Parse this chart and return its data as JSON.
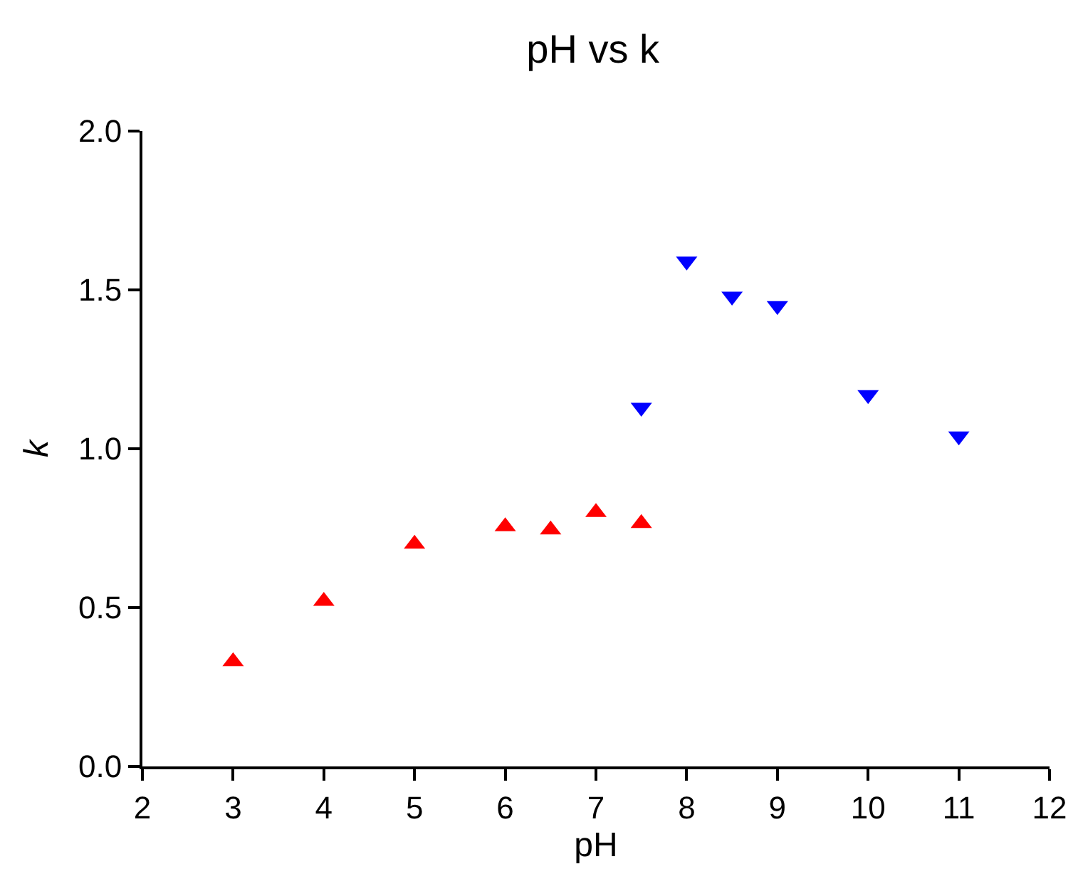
{
  "chart_data": {
    "type": "scatter",
    "title": "pH vs k",
    "xlabel": "pH",
    "ylabel": "k",
    "xlim": [
      2,
      12
    ],
    "xticks": [
      2,
      3,
      4,
      5,
      6,
      7,
      8,
      9,
      10,
      11,
      12
    ],
    "ylim": [
      0,
      2
    ],
    "yticks": [
      {
        "value": 0,
        "label": "0.0"
      },
      {
        "value": 0.5,
        "label": "0.5"
      },
      {
        "value": 1,
        "label": "1.0"
      },
      {
        "value": 1.5,
        "label": "1.5"
      },
      {
        "value": 2,
        "label": "2.0"
      }
    ],
    "grid": false,
    "series": [
      {
        "color": "#ff0000",
        "marker": "triangle",
        "x": [
          3,
          4,
          5,
          6,
          6.5,
          7,
          7.5
        ],
        "values": [
          0.33,
          0.52,
          0.7,
          0.755,
          0.745,
          0.8,
          0.765
        ]
      },
      {
        "color": "#0000ff",
        "marker": "triangle-down",
        "x": [
          7.5,
          8,
          8.5,
          9,
          10,
          11
        ],
        "values": [
          1.13,
          1.59,
          1.48,
          1.45,
          1.17,
          1.04
        ]
      }
    ]
  }
}
